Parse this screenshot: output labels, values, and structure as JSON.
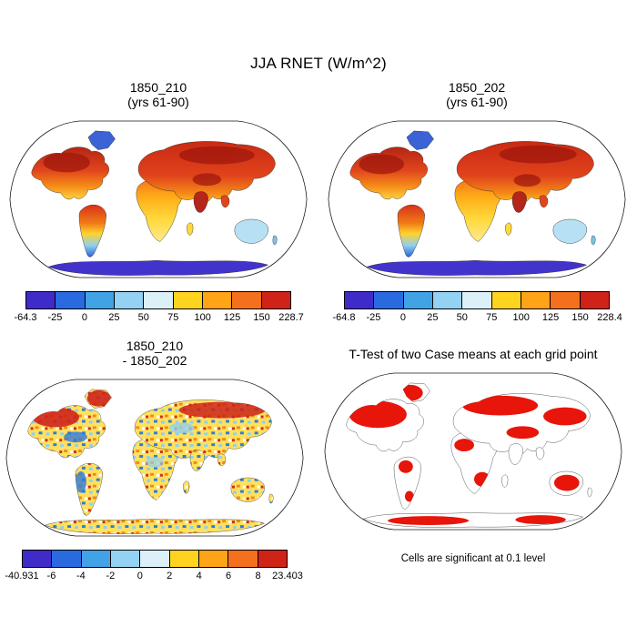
{
  "figure": {
    "title": "JJA RNET (W/m^2)"
  },
  "panels": {
    "top_left": {
      "title_line1": "1850_210",
      "title_line2": "(yrs 61-90)",
      "colorbar": {
        "ticks": [
          "-64.3",
          "-25",
          "0",
          "25",
          "50",
          "75",
          "100",
          "125",
          "150",
          "228.7"
        ],
        "colors": [
          "#3f2cc8",
          "#2a6ae0",
          "#41a2e6",
          "#93d2f2",
          "#dcf0fa",
          "#ffd41f",
          "#ffa317",
          "#f4701c",
          "#cf2318"
        ]
      }
    },
    "top_right": {
      "title_line1": "1850_202",
      "title_line2": "(yrs 61-90)",
      "colorbar": {
        "ticks": [
          "-64.8",
          "-25",
          "0",
          "25",
          "50",
          "75",
          "100",
          "125",
          "150",
          "228.4"
        ],
        "colors": [
          "#3f2cc8",
          "#2a6ae0",
          "#41a2e6",
          "#93d2f2",
          "#dcf0fa",
          "#ffd41f",
          "#ffa317",
          "#f4701c",
          "#cf2318"
        ]
      }
    },
    "bottom_left": {
      "title_line1": "1850_210",
      "title_line2": "- 1850_202",
      "colorbar": {
        "ticks": [
          "-40.931",
          "-6",
          "-4",
          "-2",
          "0",
          "2",
          "4",
          "6",
          "8",
          "23.403"
        ],
        "colors": [
          "#3f2cc8",
          "#2a6ae0",
          "#41a2e6",
          "#93d2f2",
          "#dcf0fa",
          "#ffd41f",
          "#ffa317",
          "#f4701c",
          "#cf2318"
        ]
      }
    },
    "bottom_right": {
      "title": "T-Test of two Case means at each grid point",
      "caption": "Cells are significant at 0.1 level"
    }
  },
  "chart_data": [
    {
      "type": "heatmap",
      "subtype": "global-map",
      "projection": "robinson",
      "title": "1850_210 (yrs 61-90)",
      "variable": "JJA RNET",
      "units": "W/m^2",
      "min": -64.3,
      "max": 228.7,
      "colorbar_ticks": [
        -64.3,
        -25,
        0,
        25,
        50,
        75,
        100,
        125,
        150,
        228.7
      ],
      "palette": [
        "#3f2cc8",
        "#2a6ae0",
        "#41a2e6",
        "#93d2f2",
        "#dcf0fa",
        "#ffd41f",
        "#ffa317",
        "#f4701c",
        "#cf2318"
      ],
      "legend_position": "bottom",
      "ocean": "white"
    },
    {
      "type": "heatmap",
      "subtype": "global-map",
      "projection": "robinson",
      "title": "1850_202 (yrs 61-90)",
      "variable": "JJA RNET",
      "units": "W/m^2",
      "min": -64.8,
      "max": 228.4,
      "colorbar_ticks": [
        -64.8,
        -25,
        0,
        25,
        50,
        75,
        100,
        125,
        150,
        228.4
      ],
      "palette": [
        "#3f2cc8",
        "#2a6ae0",
        "#41a2e6",
        "#93d2f2",
        "#dcf0fa",
        "#ffd41f",
        "#ffa317",
        "#f4701c",
        "#cf2318"
      ],
      "legend_position": "bottom",
      "ocean": "white"
    },
    {
      "type": "heatmap",
      "subtype": "global-map-difference",
      "projection": "robinson",
      "title": "1850_210 - 1850_202",
      "units": "W/m^2",
      "min": -40.931,
      "max": 23.403,
      "colorbar_ticks": [
        -40.931,
        -6,
        -4,
        -2,
        0,
        2,
        4,
        6,
        8,
        23.403
      ],
      "palette": [
        "#3f2cc8",
        "#2a6ae0",
        "#41a2e6",
        "#93d2f2",
        "#dcf0fa",
        "#ffd41f",
        "#ffa317",
        "#f4701c",
        "#cf2318"
      ],
      "legend_position": "bottom",
      "ocean": "white"
    },
    {
      "type": "heatmap",
      "subtype": "significance-mask-map",
      "projection": "robinson",
      "title": "T-Test of two Case means at each grid point",
      "annotation": "Cells are significant at 0.1 level",
      "significance_level": 0.1,
      "significant_color": "#e8150a",
      "legend_position": "none",
      "ocean": "white"
    }
  ]
}
